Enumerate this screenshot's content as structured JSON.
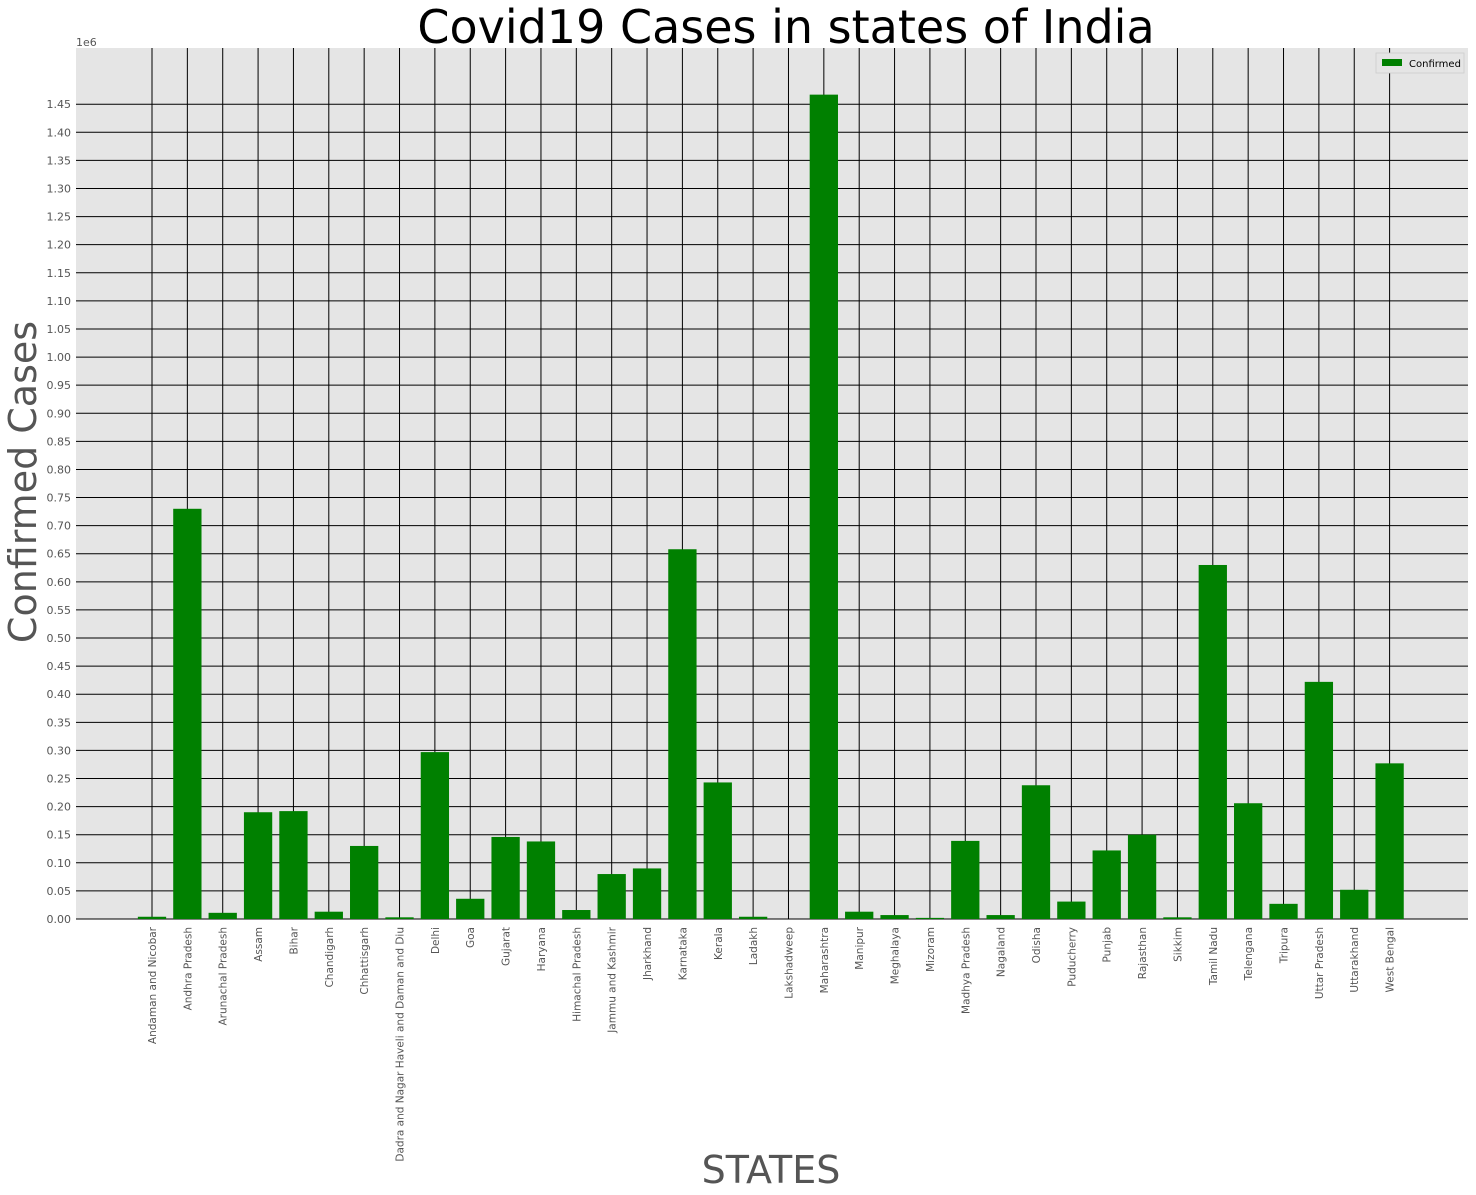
{
  "chart_data": {
    "type": "bar",
    "title": "Covid19 Cases in states of India",
    "xlabel": "STATES",
    "ylabel": "Confirmed Cases",
    "y_offset_text": "1e6",
    "ylim": [
      0,
      1.55
    ],
    "ytick_step": 0.05,
    "y_multiplier": 1000000,
    "grid": true,
    "legend": {
      "position": "top-right",
      "entries": [
        {
          "label": "Confirmed",
          "color": "#008000"
        }
      ]
    },
    "bar_color": "#008000",
    "background_color": "#e5e5e5",
    "series": [
      {
        "name": "Confirmed"
      }
    ],
    "categories": [
      "Andaman and Nicobar",
      "Andhra Pradesh",
      "Arunachal Pradesh",
      "Assam",
      "Bihar",
      "Chandigarh",
      "Chhattisgarh",
      "Dadra and Nagar Haveli and Daman and Diu",
      "Delhi",
      "Goa",
      "Gujarat",
      "Haryana",
      "Himachal Pradesh",
      "Jammu and Kashmir",
      "Jharkhand",
      "Karnataka",
      "Kerala",
      "Ladakh",
      "Lakshadweep",
      "Maharashtra",
      "Manipur",
      "Meghalaya",
      "Mizoram",
      "Madhya Pradesh",
      "Nagaland",
      "Odisha",
      "Puducherry",
      "Punjab",
      "Rajasthan",
      "Sikkim",
      "Tamil Nadu",
      "Telengana",
      "Tripura",
      "Uttar Pradesh",
      "Uttarakhand",
      "West Bengal"
    ],
    "values": [
      4000,
      730000,
      11000,
      190000,
      192000,
      13000,
      130000,
      3000,
      297000,
      36000,
      146000,
      138000,
      16000,
      80000,
      90000,
      658000,
      243000,
      4000,
      0,
      1467000,
      13000,
      7000,
      2000,
      139000,
      7000,
      238000,
      31000,
      122000,
      150000,
      3000,
      630000,
      206000,
      27000,
      422000,
      52000,
      277000
    ]
  }
}
